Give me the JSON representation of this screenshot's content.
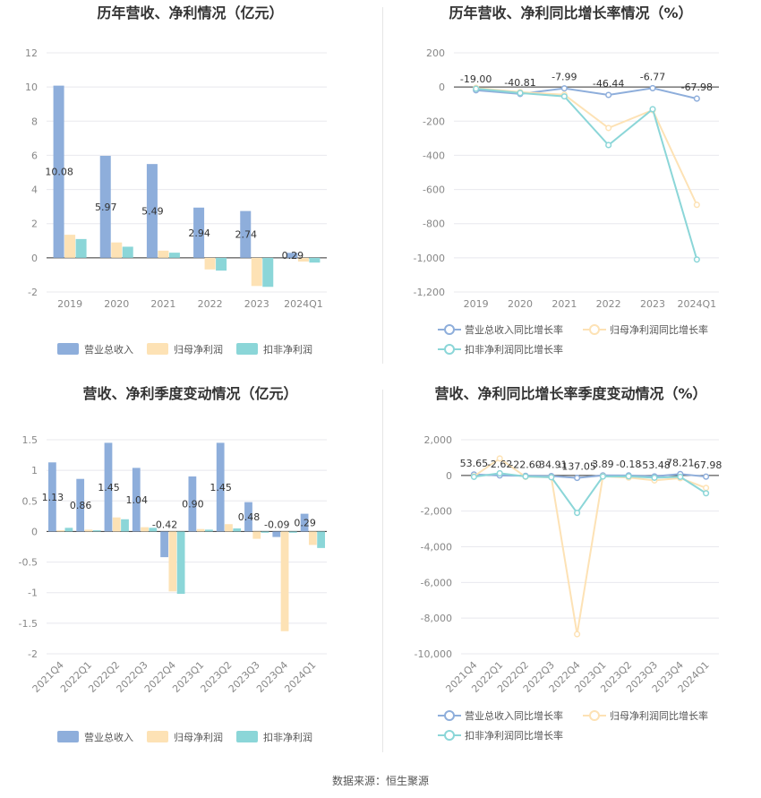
{
  "colors": {
    "revenue": "#8eaedb",
    "net_profit": "#fde2b5",
    "deducted_profit": "#8bd6d8",
    "grid": "#e8e8ee",
    "axis": "#cccccc"
  },
  "source_text": "数据来源：恒生聚源",
  "chart_data": [
    {
      "id": "annual-bar",
      "type": "bar",
      "title": "历年营收、净利情况（亿元）",
      "categories": [
        "2019",
        "2020",
        "2021",
        "2022",
        "2023",
        "2024Q1"
      ],
      "ylim": [
        -2,
        12
      ],
      "yticks": [
        -2,
        0,
        2,
        4,
        6,
        8,
        10,
        12
      ],
      "ytick_labels": [
        "-2",
        "0",
        "2",
        "4",
        "6",
        "8",
        "10",
        "12"
      ],
      "tick_rotate": false,
      "label_series": 0,
      "series": [
        {
          "name": "营业总收入",
          "color": "#8eaedb",
          "values": [
            10.08,
            5.97,
            5.49,
            2.94,
            2.74,
            0.29
          ],
          "labels": [
            "10.08",
            "5.97",
            "5.49",
            "2.94",
            "2.74",
            "0.29"
          ]
        },
        {
          "name": "归母净利润",
          "color": "#fde2b5",
          "values": [
            1.35,
            0.9,
            0.42,
            -0.68,
            -1.65,
            -0.22
          ],
          "labels": []
        },
        {
          "name": "扣非净利润",
          "color": "#8bd6d8",
          "values": [
            1.1,
            0.65,
            0.3,
            -0.75,
            -1.7,
            -0.28
          ],
          "labels": []
        }
      ],
      "legend_rows": [
        [
          0,
          1,
          2
        ]
      ],
      "grid": true,
      "legend": "bottom"
    },
    {
      "id": "annual-line",
      "type": "line",
      "title": "历年营收、净利同比增长率情况（%）",
      "categories": [
        "2019",
        "2020",
        "2021",
        "2022",
        "2023",
        "2024Q1"
      ],
      "ylim": [
        -1200,
        200
      ],
      "yticks": [
        -1200,
        -1000,
        -800,
        -600,
        -400,
        -200,
        0,
        200
      ],
      "ytick_labels": [
        "-1,200",
        "-1,000",
        "-800",
        "-600",
        "-400",
        "-200",
        "0",
        "200"
      ],
      "tick_rotate": false,
      "label_series": 0,
      "series": [
        {
          "name": "营业总收入同比增长率",
          "color": "#8eaedb",
          "values": [
            -19.0,
            -40.81,
            -7.99,
            -46.44,
            -6.77,
            -67.98
          ],
          "labels": [
            "-19.00",
            "-40.81",
            "-7.99",
            "-46.44",
            "-6.77",
            "-67.98"
          ]
        },
        {
          "name": "归母净利润同比增长率",
          "color": "#fde2b5",
          "values": [
            -5,
            -30,
            -45,
            -240,
            -135,
            -690
          ],
          "labels": []
        },
        {
          "name": "扣非净利润同比增长率",
          "color": "#8bd6d8",
          "values": [
            -10,
            -35,
            -55,
            -340,
            -130,
            -1010
          ],
          "labels": []
        }
      ],
      "legend_rows": [
        [
          0,
          1
        ],
        [
          2
        ]
      ],
      "grid": true,
      "legend": "bottom"
    },
    {
      "id": "quarterly-bar",
      "type": "bar",
      "title": "营收、净利季度变动情况（亿元）",
      "categories": [
        "2021Q4",
        "2022Q1",
        "2022Q2",
        "2022Q3",
        "2022Q4",
        "2023Q1",
        "2023Q2",
        "2023Q3",
        "2023Q4",
        "2024Q1"
      ],
      "ylim": [
        -2,
        1.5
      ],
      "yticks": [
        -2,
        -1.5,
        -1,
        -0.5,
        0,
        0.5,
        1,
        1.5
      ],
      "ytick_labels": [
        "-2",
        "-1.5",
        "-1",
        "-0.5",
        "0",
        "0.5",
        "1",
        "1.5"
      ],
      "tick_rotate": true,
      "label_series": 0,
      "series": [
        {
          "name": "营业总收入",
          "color": "#8eaedb",
          "values": [
            1.13,
            0.86,
            1.45,
            1.04,
            -0.42,
            0.9,
            1.45,
            0.48,
            -0.09,
            0.29
          ],
          "labels": [
            "1.13",
            "0.86",
            "1.45",
            "1.04",
            "-0.42",
            "0.90",
            "1.45",
            "0.48",
            "-0.09",
            "0.29"
          ]
        },
        {
          "name": "归母净利润",
          "color": "#fde2b5",
          "values": [
            0.02,
            0.03,
            0.23,
            0.07,
            -0.98,
            0.04,
            0.12,
            -0.12,
            -1.63,
            -0.22
          ],
          "labels": []
        },
        {
          "name": "扣非净利润",
          "color": "#8bd6d8",
          "values": [
            0.06,
            0.02,
            0.2,
            0.06,
            -1.02,
            0.03,
            0.05,
            -0.02,
            -0.02,
            -0.27
          ],
          "labels": []
        }
      ],
      "legend_rows": [
        [
          0,
          1,
          2
        ]
      ],
      "grid": true,
      "legend": "bottom"
    },
    {
      "id": "quarterly-line",
      "type": "line",
      "title": "营收、净利同比增长率季度变动情况（%）",
      "categories": [
        "2021Q4",
        "2022Q1",
        "2022Q2",
        "2022Q3",
        "2022Q4",
        "2023Q1",
        "2023Q2",
        "2023Q3",
        "2023Q4",
        "2024Q1"
      ],
      "ylim": [
        -10000,
        2000
      ],
      "yticks": [
        -10000,
        -8000,
        -6000,
        -4000,
        -2000,
        0,
        2000
      ],
      "ytick_labels": [
        "-10,000",
        "-8,000",
        "-6,000",
        "-4,000",
        "-2,000",
        "0",
        "2,000"
      ],
      "tick_rotate": true,
      "label_series": 0,
      "series": [
        {
          "name": "营业总收入同比增长率",
          "color": "#8eaedb",
          "values": [
            53.65,
            -2.62,
            -22.6,
            -34.91,
            -137.05,
            3.89,
            -0.18,
            -53.48,
            78.21,
            -67.98
          ],
          "labels": [
            "53.65",
            "-2.62",
            "-22.60",
            "-34.91",
            "-137.05",
            "3.89",
            "-0.18",
            "-53.48",
            "78.21",
            "-67.98"
          ]
        },
        {
          "name": "归母净利润同比增长率",
          "color": "#fde2b5",
          "values": [
            -50,
            950,
            -80,
            -100,
            -8900,
            -50,
            -120,
            -280,
            -150,
            -700
          ],
          "labels": []
        },
        {
          "name": "扣非净利润同比增长率",
          "color": "#8bd6d8",
          "values": [
            -80,
            120,
            -60,
            -100,
            -2100,
            -60,
            -50,
            -130,
            -80,
            -1000
          ],
          "labels": []
        }
      ],
      "legend_rows": [
        [
          0,
          1
        ],
        [
          2
        ]
      ],
      "grid": true,
      "legend": "bottom"
    }
  ]
}
